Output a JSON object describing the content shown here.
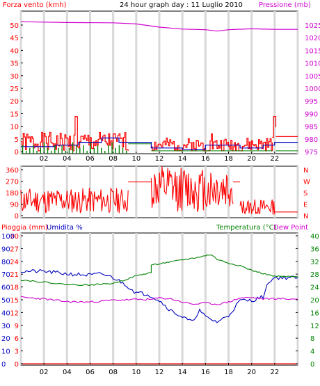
{
  "header": {
    "wind_label": "Forza vento (kmh)",
    "title": "24 hour graph day : 11 Luglio 2010",
    "pressure_label": "Pressione (mb)"
  },
  "panel3_labels": {
    "rain_label": "Pioggia (mm)",
    "humidity_label": "Umidita %",
    "temp_label": "Temperatura (°C)",
    "dew_label": "Dew Point"
  },
  "colors": {
    "wind": "#ff0000",
    "gust": "#0000c0",
    "avg": "#008000",
    "pressure": "#d000d0",
    "direction": "#ff0000",
    "rain": "#ff0000",
    "humidity": "#0000c0",
    "temperature": "#008000",
    "dewpoint": "#d000d0",
    "grid_v": "#d8d8d8"
  },
  "chart_data": [
    {
      "type": "line",
      "name": "wind-pressure",
      "x_ticks": [
        "02",
        "04",
        "06",
        "08",
        "10",
        "12",
        "14",
        "16",
        "18",
        "20",
        "22"
      ],
      "y_left_ticks": [
        "0",
        "5",
        "10",
        "15",
        "20",
        "25",
        "30",
        "35",
        "40",
        "45",
        "50"
      ],
      "y_right_ticks": [
        "975",
        "980",
        "985",
        "990",
        "995",
        "1000",
        "1005",
        "1010",
        "1015",
        "1020",
        "1025"
      ],
      "ylim_left": [
        0,
        50
      ],
      "ylim_right": [
        975,
        1025
      ],
      "no_data_hours": [
        9.3,
        11.3
      ],
      "pressure_points": [
        [
          0,
          1021.3
        ],
        [
          4,
          1021.0
        ],
        [
          8,
          1020.9
        ],
        [
          10,
          1020.5
        ],
        [
          12,
          1019.4
        ],
        [
          14,
          1018.7
        ],
        [
          16,
          1018.5
        ],
        [
          17,
          1018.0
        ],
        [
          18,
          1018.5
        ],
        [
          20,
          1018.8
        ],
        [
          22,
          1018.6
        ],
        [
          24,
          1018.6
        ]
      ],
      "wind_segments": [
        {
          "from": 0,
          "to": 9.3,
          "base": 4,
          "amp": 3.5,
          "peak_at": 4.8,
          "peak": 13,
          "seed": 1
        },
        {
          "from": 11.3,
          "to": 21.8,
          "base": 3,
          "amp": 2.5,
          "peak_at": 16.5,
          "peak": 7,
          "seed": 2
        },
        {
          "from": 21.8,
          "to": 22.1,
          "base": 8,
          "amp": 4,
          "peak_at": 22,
          "peak": 13,
          "seed": 3
        },
        {
          "from": 22.1,
          "to": 24,
          "base": 6,
          "amp": 0,
          "peak_at": 23,
          "peak": 6,
          "seed": 4
        }
      ],
      "gust_points": [
        [
          0,
          2.5
        ],
        [
          3,
          3
        ],
        [
          5,
          4
        ],
        [
          7,
          5.5
        ],
        [
          8.5,
          4
        ],
        [
          9.3,
          4
        ],
        [
          11.3,
          2
        ],
        [
          14,
          1.5
        ],
        [
          16,
          3
        ],
        [
          19,
          2
        ],
        [
          21,
          3
        ],
        [
          22,
          4
        ],
        [
          24,
          4
        ]
      ],
      "avg_level": 1.2,
      "avg_bars_from": 0,
      "avg_bars_to": 9.3,
      "avg_bar_heights": [
        3,
        1,
        2,
        3,
        1,
        2,
        4,
        2,
        1,
        3,
        2,
        3,
        1,
        2,
        4,
        3,
        2,
        3,
        1,
        4,
        2,
        3,
        2,
        1,
        3,
        4,
        2,
        3,
        2,
        1
      ],
      "avg_level_segments": [
        [
          11.3,
          21.8
        ],
        [
          22.1,
          24
        ]
      ],
      "avg_level_value": 1.0,
      "avg_late_level": 3.5
    },
    {
      "type": "line",
      "name": "wind-direction",
      "y_left_ticks": [
        "0",
        "90",
        "180",
        "270",
        "360"
      ],
      "y_right_labels": [
        "N",
        "W",
        "S",
        "E",
        "N"
      ],
      "ylim": [
        0,
        360
      ],
      "segments": [
        {
          "from": 0,
          "to": 9.3,
          "center": 120,
          "spread": 90,
          "seed": 11
        },
        {
          "from": 11.3,
          "to": 18.4,
          "center": 200,
          "spread": 160,
          "seed": 12
        },
        {
          "from": 19.0,
          "to": 22.0,
          "center": 75,
          "spread": 55,
          "seed": 13
        }
      ],
      "steady": [
        [
          9.3,
          11.3,
          250
        ],
        [
          18.4,
          19.0,
          250
        ],
        [
          22.0,
          24,
          40
        ]
      ]
    },
    {
      "type": "line",
      "name": "rain-humidity-temp-dew",
      "y_rain_ticks": [
        "0",
        "3",
        "6",
        "9",
        "12",
        "15",
        "18",
        "21",
        "24",
        "27",
        "30"
      ],
      "y_humidity_ticks": [
        "0",
        "10",
        "20",
        "30",
        "40",
        "50",
        "60",
        "70",
        "80",
        "90",
        "100"
      ],
      "y_temp_ticks": [
        "0",
        "4",
        "8",
        "12",
        "16",
        "20",
        "24",
        "28",
        "32",
        "36",
        "40"
      ],
      "ylim_rain": [
        0,
        30
      ],
      "ylim_humidity": [
        0,
        100
      ],
      "ylim_temp": [
        0,
        40
      ],
      "rain_value": 0,
      "humidity": [
        [
          0,
          73
        ],
        [
          2,
          73
        ],
        [
          4,
          71
        ],
        [
          6,
          70
        ],
        [
          7,
          71
        ],
        [
          8,
          68
        ],
        [
          9,
          63
        ],
        [
          10,
          56
        ],
        [
          11,
          55
        ],
        [
          12,
          50
        ],
        [
          13,
          42
        ],
        [
          14,
          37
        ],
        [
          14.8,
          33
        ],
        [
          15.5,
          42
        ],
        [
          16,
          37
        ],
        [
          17,
          33
        ],
        [
          18,
          38
        ],
        [
          19,
          50
        ],
        [
          20,
          50
        ],
        [
          21,
          53
        ],
        [
          21.5,
          65
        ],
        [
          22,
          68
        ],
        [
          24,
          68
        ]
      ],
      "temperature": [
        [
          0,
          26.5
        ],
        [
          2,
          25.8
        ],
        [
          4,
          25.0
        ],
        [
          6,
          24.9
        ],
        [
          8,
          25.4
        ],
        [
          9,
          26.5
        ],
        [
          10,
          27.8
        ],
        [
          11.3,
          28.8
        ],
        [
          11.3,
          31.2
        ],
        [
          13,
          32.2
        ],
        [
          15,
          33.4
        ],
        [
          16.5,
          34.5
        ],
        [
          17,
          33
        ],
        [
          18,
          31.8
        ],
        [
          19,
          31
        ],
        [
          20,
          29.5
        ],
        [
          21,
          28.5
        ],
        [
          22,
          27.6
        ],
        [
          24,
          27.5
        ]
      ],
      "dewpoint": [
        [
          0,
          21.0
        ],
        [
          2,
          20.5
        ],
        [
          4,
          19.6
        ],
        [
          6,
          19.5
        ],
        [
          8,
          20.1
        ],
        [
          10,
          20.3
        ],
        [
          11.3,
          20.3
        ],
        [
          12,
          20.8
        ],
        [
          13,
          20.5
        ],
        [
          14,
          19.5
        ],
        [
          15,
          18.8
        ],
        [
          16,
          19.2
        ],
        [
          17,
          18.8
        ],
        [
          18,
          19.5
        ],
        [
          19,
          20.8
        ],
        [
          20,
          20.9
        ],
        [
          21,
          20.5
        ],
        [
          22,
          20.6
        ],
        [
          24,
          20.4
        ]
      ]
    }
  ]
}
